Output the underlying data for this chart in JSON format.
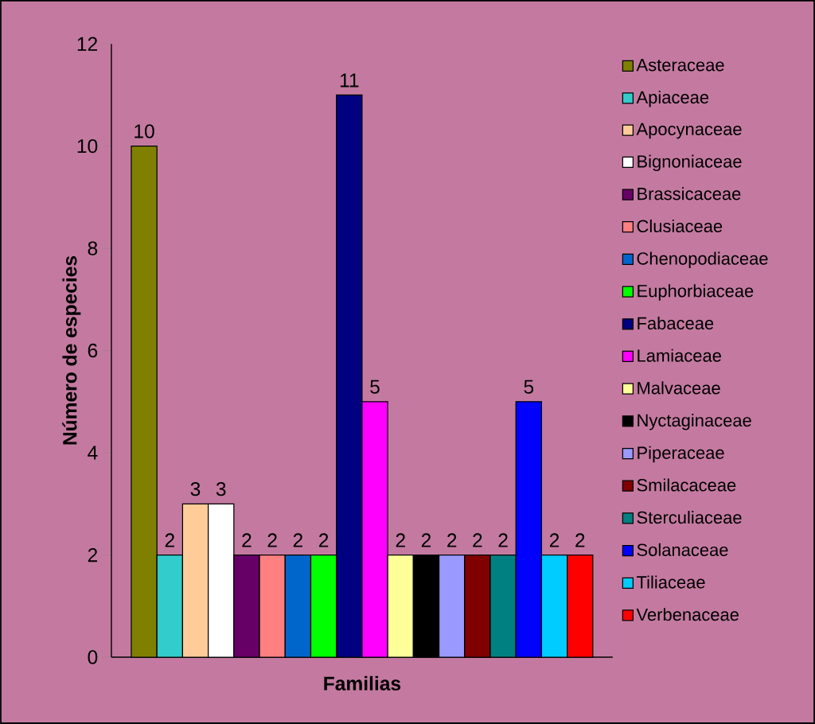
{
  "chart_data": {
    "type": "bar",
    "xlabel": "Familias",
    "ylabel": "Número de especies",
    "categories": [
      null
    ],
    "series": [
      {
        "name": "Asteraceae",
        "color": "#808000",
        "values": [
          10
        ]
      },
      {
        "name": "Apiaceae",
        "color": "#33cccc",
        "values": [
          2
        ]
      },
      {
        "name": "Apocynaceae",
        "color": "#ffcc99",
        "values": [
          3
        ]
      },
      {
        "name": "Bignoniaceae",
        "color": "#ffffff",
        "values": [
          3
        ]
      },
      {
        "name": "Brassicaceae",
        "color": "#660066",
        "values": [
          2
        ]
      },
      {
        "name": "Clusiaceae",
        "color": "#ff8080",
        "values": [
          2
        ]
      },
      {
        "name": "Chenopodiaceae",
        "color": "#0066cc",
        "values": [
          2
        ]
      },
      {
        "name": "Euphorbiaceae",
        "color": "#00ff00",
        "values": [
          2
        ]
      },
      {
        "name": "Fabaceae",
        "color": "#000080",
        "values": [
          11
        ]
      },
      {
        "name": "Lamiaceae",
        "color": "#ff00ff",
        "values": [
          5
        ]
      },
      {
        "name": "Malvaceae",
        "color": "#ffff99",
        "values": [
          2
        ]
      },
      {
        "name": "Nyctaginaceae",
        "color": "#000000",
        "values": [
          2
        ]
      },
      {
        "name": "Piperaceae",
        "color": "#9999ff",
        "values": [
          2
        ]
      },
      {
        "name": "Smilacaceae",
        "color": "#800000",
        "values": [
          2
        ]
      },
      {
        "name": "Sterculiaceae",
        "color": "#008080",
        "values": [
          2
        ]
      },
      {
        "name": "Solanaceae",
        "color": "#0000ff",
        "values": [
          5
        ]
      },
      {
        "name": "Tiliaceae",
        "color": "#00ccff",
        "values": [
          2
        ]
      },
      {
        "name": "Verbenaceae",
        "color": "#ff0000",
        "values": [
          2
        ]
      }
    ],
    "ylim": [
      0,
      12
    ],
    "yticks": [
      0,
      2,
      4,
      6,
      8,
      10,
      12
    ],
    "data_labels": true,
    "legend": "right"
  }
}
